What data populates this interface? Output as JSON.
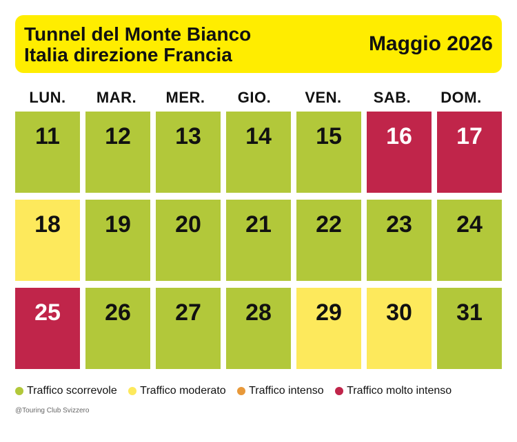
{
  "header": {
    "title_line1": "Tunnel del Monte Bianco",
    "title_line2": "Italia direzione Francia",
    "month": "Maggio 2026"
  },
  "weekdays": [
    "LUN.",
    "MAR.",
    "MER.",
    "GIO.",
    "VEN.",
    "SAB.",
    "DOM."
  ],
  "colors": {
    "header_bg": "#ffed00",
    "scorrevole": "#b2c83a",
    "moderato": "#fde95c",
    "intenso": "#e8993a",
    "molto_intenso": "#c0254a"
  },
  "days": [
    {
      "day": "11",
      "traffic": "scorrevole"
    },
    {
      "day": "12",
      "traffic": "scorrevole"
    },
    {
      "day": "13",
      "traffic": "scorrevole"
    },
    {
      "day": "14",
      "traffic": "scorrevole"
    },
    {
      "day": "15",
      "traffic": "scorrevole"
    },
    {
      "day": "16",
      "traffic": "molto_intenso"
    },
    {
      "day": "17",
      "traffic": "molto_intenso"
    },
    {
      "day": "18",
      "traffic": "moderato"
    },
    {
      "day": "19",
      "traffic": "scorrevole"
    },
    {
      "day": "20",
      "traffic": "scorrevole"
    },
    {
      "day": "21",
      "traffic": "scorrevole"
    },
    {
      "day": "22",
      "traffic": "scorrevole"
    },
    {
      "day": "23",
      "traffic": "scorrevole"
    },
    {
      "day": "24",
      "traffic": "scorrevole"
    },
    {
      "day": "25",
      "traffic": "molto_intenso"
    },
    {
      "day": "26",
      "traffic": "scorrevole"
    },
    {
      "day": "27",
      "traffic": "scorrevole"
    },
    {
      "day": "28",
      "traffic": "scorrevole"
    },
    {
      "day": "29",
      "traffic": "moderato"
    },
    {
      "day": "30",
      "traffic": "moderato"
    },
    {
      "day": "31",
      "traffic": "scorrevole"
    }
  ],
  "legend": {
    "scorrevole": "Traffico scorrevole",
    "moderato": "Traffico moderato",
    "intenso": "Traffico intenso",
    "molto_intenso": "Traffico molto intenso"
  },
  "credit": "@Touring Club Svizzero"
}
